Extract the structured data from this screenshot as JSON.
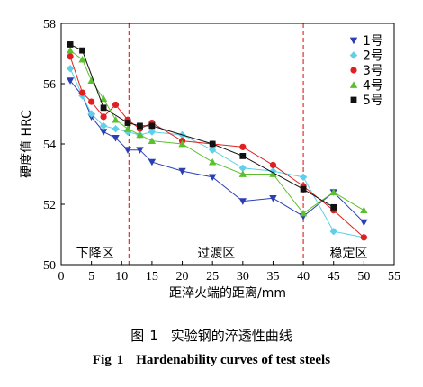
{
  "chart_data": {
    "type": "line",
    "xlabel": "距淬火端的距离/mm",
    "ylabel": "硬度值 HRC",
    "xlim": [
      0,
      55
    ],
    "ylim": [
      50,
      58
    ],
    "xticks": [
      0,
      5,
      10,
      15,
      20,
      25,
      30,
      35,
      40,
      45,
      50,
      55
    ],
    "yticks": [
      50,
      52,
      54,
      56,
      58
    ],
    "grid": false,
    "legend_position": "top-right",
    "zone_dividers_x": [
      11.2,
      40
    ],
    "zones": [
      "下降区",
      "过渡区",
      "稳定区"
    ],
    "series": [
      {
        "name": "1号",
        "color": "#2a3fb5",
        "marker": "triangle-down",
        "x": [
          1.5,
          3.5,
          5,
          7,
          9,
          11,
          13,
          15,
          20,
          25,
          30,
          35,
          40,
          45,
          50
        ],
        "y": [
          56.1,
          55.6,
          54.9,
          54.4,
          54.2,
          53.8,
          53.8,
          53.4,
          53.1,
          52.9,
          52.1,
          52.2,
          51.6,
          52.4,
          51.4
        ]
      },
      {
        "name": "2号",
        "color": "#5fd0e8",
        "marker": "diamond",
        "x": [
          1.5,
          3.5,
          5,
          7,
          9,
          11,
          13,
          15,
          20,
          25,
          30,
          35,
          40,
          45,
          50
        ],
        "y": [
          56.5,
          55.6,
          55.0,
          54.6,
          54.5,
          54.4,
          54.3,
          54.4,
          54.3,
          53.8,
          53.2,
          53.1,
          52.9,
          51.1,
          50.9
        ]
      },
      {
        "name": "3号",
        "color": "#e02020",
        "marker": "circle",
        "x": [
          1.5,
          3.5,
          5,
          7,
          9,
          11,
          13,
          15,
          20,
          25,
          30,
          35,
          40,
          45,
          50
        ],
        "y": [
          56.9,
          55.7,
          55.4,
          54.9,
          55.3,
          54.8,
          54.5,
          54.7,
          54.1,
          54.0,
          53.9,
          53.3,
          52.6,
          51.8,
          50.9
        ]
      },
      {
        "name": "4号",
        "color": "#5cc02e",
        "marker": "triangle-up",
        "x": [
          1.5,
          3.5,
          5,
          7,
          9,
          11,
          13,
          15,
          20,
          25,
          30,
          35,
          40,
          45,
          50
        ],
        "y": [
          57.1,
          56.8,
          56.1,
          55.5,
          54.8,
          54.5,
          54.3,
          54.1,
          54.0,
          53.4,
          53.0,
          53.0,
          51.7,
          52.4,
          51.8
        ]
      },
      {
        "name": "5号",
        "color": "#111111",
        "marker": "square",
        "x": [
          1.5,
          3.5,
          7,
          11,
          13,
          15,
          25,
          30,
          40,
          45
        ],
        "y": [
          57.3,
          57.1,
          55.2,
          54.7,
          54.6,
          54.6,
          54.0,
          53.6,
          52.5,
          51.9
        ]
      }
    ]
  },
  "caption": {
    "cn_fig": "图",
    "cn_num": "1",
    "cn_text": "实验钢的淬透性曲线",
    "en_fig": "Fig",
    "en_num": "1",
    "en_text": "Hardenability curves of test steels"
  }
}
